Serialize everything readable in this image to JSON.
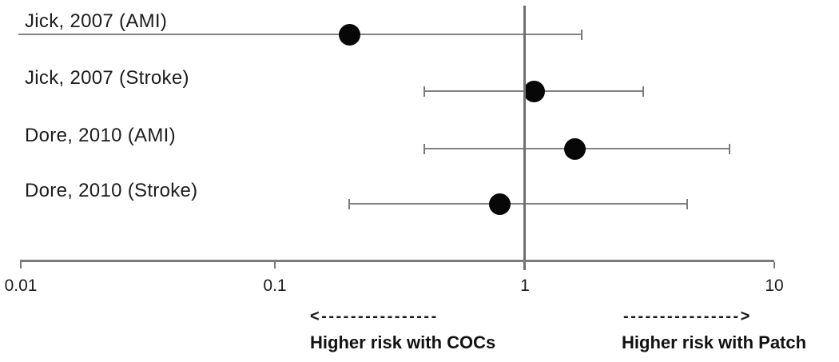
{
  "chart_data": {
    "type": "forest",
    "x_axis": {
      "scale": "log",
      "min": 0.01,
      "max": 10,
      "tick_values": [
        0.01,
        0.1,
        1,
        10
      ],
      "tick_labels": [
        "0.01",
        "0.1",
        "1",
        "10"
      ],
      "reference_line_x": 1,
      "grid": false
    },
    "rows": [
      {
        "label": "Jick, 2007 (AMI)",
        "estimate": 0.2,
        "ci_lower": null,
        "ci_lower_offscale": true,
        "ci_upper": 1.7
      },
      {
        "label": "Jick, 2007 (Stroke)",
        "estimate": 1.1,
        "ci_lower": 0.4,
        "ci_lower_offscale": false,
        "ci_upper": 3.0
      },
      {
        "label": "Dore, 2010 (AMI)",
        "estimate": 1.6,
        "ci_lower": 0.4,
        "ci_lower_offscale": false,
        "ci_upper": 6.6
      },
      {
        "label": "Dore, 2010 (Stroke)",
        "estimate": 0.8,
        "ci_lower": 0.2,
        "ci_lower_offscale": false,
        "ci_upper": 4.5
      }
    ],
    "annotations": {
      "left_arrow": "<----------------",
      "left_label": "Higher risk with COCs",
      "right_arrow": "---------------->",
      "right_label": "Higher risk with Patch"
    }
  },
  "colors": {
    "line_gray": "#808080",
    "marker_black": "#070707",
    "text_dark": "#1c1c1c"
  }
}
